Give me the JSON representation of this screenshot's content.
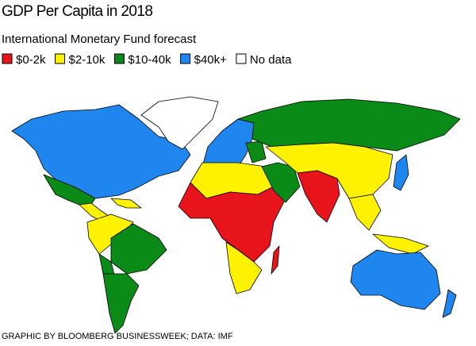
{
  "title": "GDP Per Capita in 2018",
  "subtitle": "International Monetary Fund forecast",
  "legend": [
    {
      "label": "$0-2k",
      "color": "#e8141b"
    },
    {
      "label": "$2-10k",
      "color": "#fff200"
    },
    {
      "label": "$10-40k",
      "color": "#0a8a16"
    },
    {
      "label": "$40k+",
      "color": "#1e86ee"
    },
    {
      "label": "No data",
      "color": "#ffffff"
    }
  ],
  "source": "GRAPHIC BY BLOOMBERG BUSINESSWEEK; DATA: IMF"
}
